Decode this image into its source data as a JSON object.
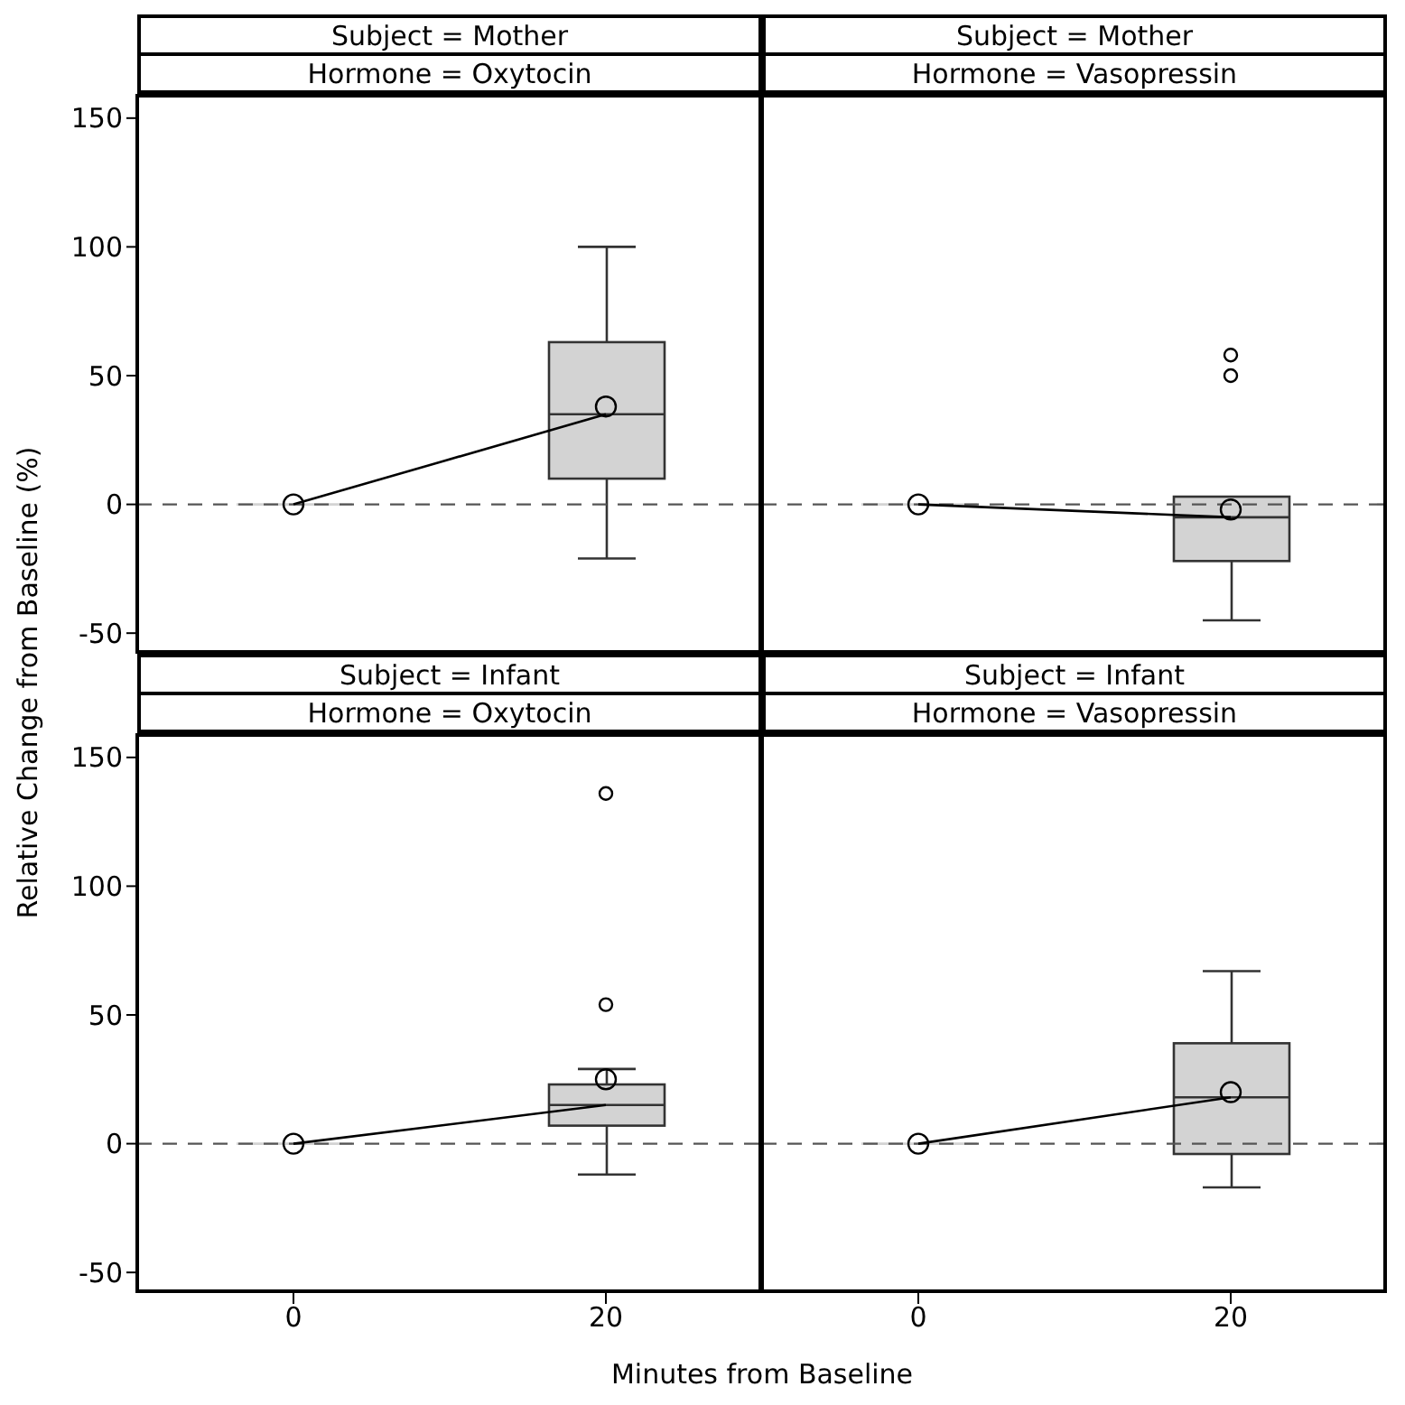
{
  "chart_data": [
    {
      "type": "box",
      "title": "Subject = Mother",
      "subtitle": "Hormone = Oxytocin",
      "ylabel": "Relative Change from Baseline (%)",
      "categories": [
        "0",
        "20"
      ],
      "ylim": [
        -58,
        158
      ],
      "yticks": [
        -50,
        0,
        50,
        100,
        150
      ],
      "tick_labels": "y",
      "series": [
        {
          "color": "#d3d3d3",
          "boxes": [
            {
              "low": 0,
              "q1": 0,
              "median": 0,
              "q3": 0,
              "high": 0,
              "mean": 0
            },
            {
              "low": -21,
              "q1": 10,
              "median": 35,
              "q3": 63,
              "high": 100,
              "mean": 38
            }
          ]
        },
        {
          "type": "line",
          "color": "#000000",
          "values": [
            0,
            35
          ]
        }
      ],
      "ref_lines": [
        {
          "axis": "y",
          "value": 0,
          "color": "#555555",
          "line_style": "dashed"
        }
      ]
    },
    {
      "type": "box",
      "title": "Subject = Mother",
      "subtitle": "Hormone = Vasopressin",
      "categories": [
        "0",
        "20"
      ],
      "ylim": [
        -58,
        158
      ],
      "yticks": [
        -50,
        0,
        50,
        100,
        150
      ],
      "tick_labels": false,
      "series": [
        {
          "color": "#d3d3d3",
          "boxes": [
            {
              "low": 0,
              "q1": 0,
              "median": 0,
              "q3": 0,
              "high": 0,
              "mean": 0
            },
            {
              "low": -45,
              "q1": -22,
              "median": -5,
              "q3": 3,
              "high": 3,
              "mean": -2,
              "outliers": [
                50,
                58
              ]
            }
          ]
        },
        {
          "type": "line",
          "color": "#000000",
          "values": [
            0,
            -5
          ]
        }
      ],
      "ref_lines": [
        {
          "axis": "y",
          "value": 0,
          "color": "#555555",
          "line_style": "dashed"
        }
      ]
    },
    {
      "type": "box",
      "title": "Subject = Infant",
      "subtitle": "Hormone = Oxytocin",
      "xlabel": "Minutes from Baseline",
      "categories": [
        "0",
        "20"
      ],
      "ylim": [
        -58,
        158
      ],
      "yticks": [
        -50,
        0,
        50,
        100,
        150
      ],
      "series": [
        {
          "color": "#d3d3d3",
          "boxes": [
            {
              "low": 0,
              "q1": 0,
              "median": 0,
              "q3": 0,
              "high": 0,
              "mean": 0
            },
            {
              "low": -12,
              "q1": 7,
              "median": 15,
              "q3": 23,
              "high": 29,
              "mean": 25,
              "outliers": [
                54,
                136
              ]
            }
          ]
        },
        {
          "type": "line",
          "color": "#000000",
          "values": [
            0,
            15
          ]
        }
      ],
      "ref_lines": [
        {
          "axis": "y",
          "value": 0,
          "color": "#555555",
          "line_style": "dashed"
        }
      ]
    },
    {
      "type": "box",
      "title": "Subject = Infant",
      "subtitle": "Hormone = Vasopressin",
      "categories": [
        "0",
        "20"
      ],
      "ylim": [
        -58,
        158
      ],
      "yticks": [
        -50,
        0,
        50,
        100,
        150
      ],
      "tick_labels": "x",
      "series": [
        {
          "color": "#d3d3d3",
          "boxes": [
            {
              "low": 0,
              "q1": 0,
              "median": 0,
              "q3": 0,
              "high": 0,
              "mean": 0
            },
            {
              "low": -17,
              "q1": -4,
              "median": 18,
              "q3": 39,
              "high": 67,
              "mean": 20
            }
          ]
        },
        {
          "type": "line",
          "color": "#000000",
          "values": [
            0,
            18
          ]
        }
      ],
      "ref_lines": [
        {
          "axis": "y",
          "value": 0,
          "color": "#555555",
          "line_style": "dashed"
        }
      ]
    }
  ]
}
